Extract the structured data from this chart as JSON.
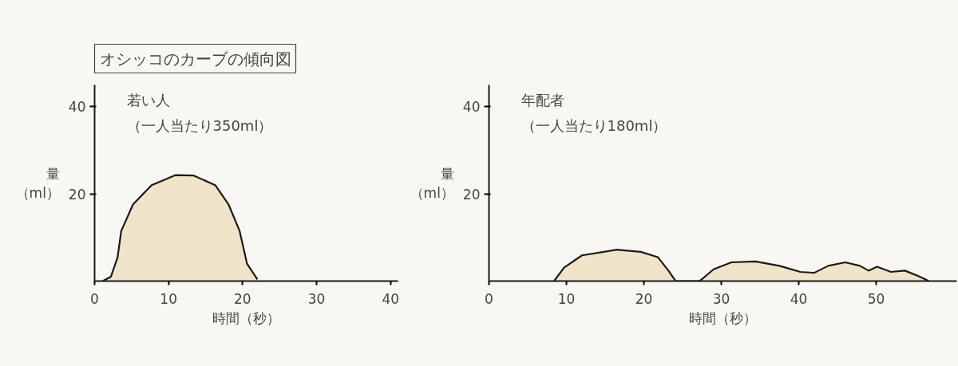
{
  "chart_data": [
    {
      "type": "area",
      "title": "オシッコのカーブの傾向図",
      "xlabel": "時間（秒）",
      "ylabel": "量（ml）",
      "annotations": [
        "（一人当たり350ml）"
      ],
      "xlim": [
        0,
        41
      ],
      "ylim": [
        0,
        45
      ],
      "xticks": [
        0,
        10,
        20,
        30,
        40
      ],
      "yticks": [
        20,
        40
      ],
      "grid": false,
      "series": [
        {
          "name": "若い人",
          "color": "#efe4c9",
          "x": [
            1.1,
            2.2,
            3.1,
            3.6,
            5.2,
            7.7,
            10.9,
            13.4,
            16.3,
            18.1,
            19.6,
            20.6,
            22.0
          ],
          "values": [
            0,
            1,
            5.4,
            11.5,
            17.6,
            22,
            24.3,
            24.2,
            22,
            17.6,
            11.5,
            4,
            0.4
          ]
        }
      ]
    },
    {
      "type": "area",
      "xlabel": "時間（秒）",
      "ylabel": "量（ml）",
      "annotations": [
        "（一人当たり180ml）"
      ],
      "xlim": [
        0,
        60.4
      ],
      "ylim": [
        0,
        45
      ],
      "xticks": [
        0,
        10,
        20,
        30,
        40,
        50
      ],
      "yticks": [
        20,
        40
      ],
      "grid": false,
      "series": [
        {
          "name": "年配者",
          "color": "#efe4c9",
          "x": [
            8.4,
            9.7,
            12,
            16.5,
            19.6,
            21.8,
            23.2,
            24.1,
            27.2,
            29,
            31.3,
            34.4,
            37.5,
            40.2,
            42,
            43.8,
            46,
            47.9,
            49,
            50.1,
            51.9,
            53.7,
            55.5,
            56.8
          ],
          "values": [
            0,
            3.1,
            5.9,
            7.2,
            6.7,
            5.5,
            2.3,
            0,
            0,
            2.7,
            4.3,
            4.5,
            3.5,
            2.1,
            1.9,
            3.5,
            4.3,
            3.5,
            2.4,
            3.3,
            2.1,
            2.4,
            1.1,
            0
          ]
        }
      ]
    }
  ]
}
